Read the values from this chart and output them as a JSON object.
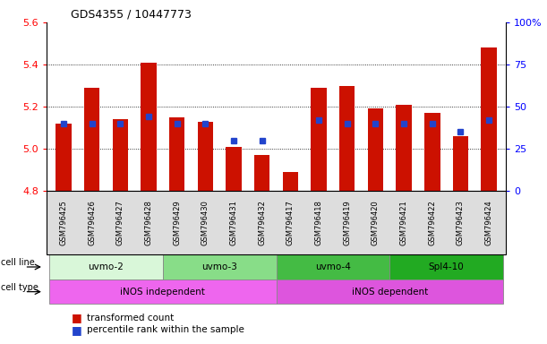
{
  "title": "GDS4355 / 10447773",
  "samples": [
    "GSM796425",
    "GSM796426",
    "GSM796427",
    "GSM796428",
    "GSM796429",
    "GSM796430",
    "GSM796431",
    "GSM796432",
    "GSM796417",
    "GSM796418",
    "GSM796419",
    "GSM796420",
    "GSM796421",
    "GSM796422",
    "GSM796423",
    "GSM796424"
  ],
  "red_values": [
    5.12,
    5.29,
    5.14,
    5.41,
    5.15,
    5.13,
    5.01,
    4.97,
    4.89,
    5.29,
    5.3,
    5.19,
    5.21,
    5.17,
    5.06,
    5.48
  ],
  "blue_percentile": [
    40,
    40,
    40,
    44,
    40,
    40,
    30,
    30,
    null,
    42,
    40,
    40,
    40,
    40,
    35,
    42
  ],
  "ymin": 4.8,
  "ymax": 5.6,
  "yticks_left": [
    4.8,
    5.0,
    5.2,
    5.4,
    5.6
  ],
  "yticks_right": [
    0,
    25,
    50,
    75,
    100
  ],
  "right_yticklabels": [
    "0",
    "25",
    "50",
    "75",
    "100%"
  ],
  "bar_color": "#cc1100",
  "blue_color": "#2244cc",
  "cell_line_groups": [
    {
      "label": "uvmo-2",
      "start": 0,
      "end": 3,
      "color": "#d9f7d9"
    },
    {
      "label": "uvmo-3",
      "start": 4,
      "end": 7,
      "color": "#88dd88"
    },
    {
      "label": "uvmo-4",
      "start": 8,
      "end": 11,
      "color": "#44bb44"
    },
    {
      "label": "Spl4-10",
      "start": 12,
      "end": 15,
      "color": "#22aa22"
    }
  ],
  "cell_type_groups": [
    {
      "label": "iNOS independent",
      "start": 0,
      "end": 7,
      "color": "#ee66ee"
    },
    {
      "label": "iNOS dependent",
      "start": 8,
      "end": 15,
      "color": "#dd55dd"
    }
  ],
  "cell_line_label": "cell line",
  "cell_type_label": "cell type",
  "legend_red": "transformed count",
  "legend_blue": "percentile rank within the sample",
  "bar_width": 0.55
}
